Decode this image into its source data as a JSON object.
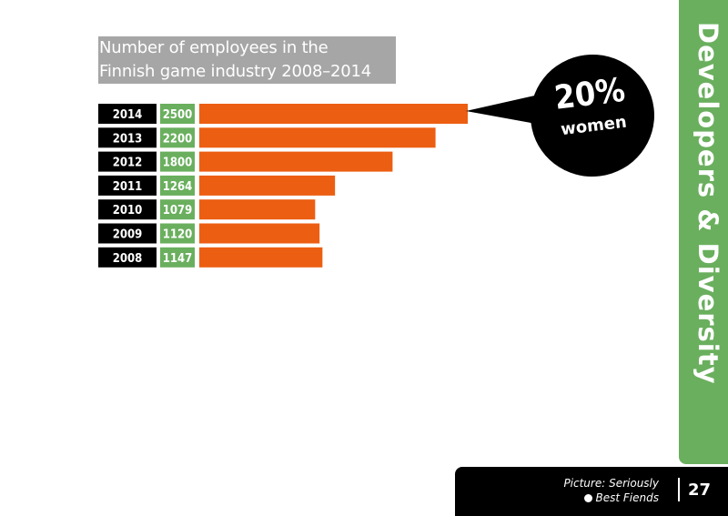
{
  "chart_data": {
    "type": "bar",
    "orientation": "horizontal",
    "title": "Number of employees in the Finnish game industry 2008–2014",
    "title_lines": [
      "Number of employees in the",
      "Finnish game industry 2008–2014"
    ],
    "categories": [
      "2014",
      "2013",
      "2012",
      "2011",
      "2010",
      "2009",
      "2008"
    ],
    "values": [
      2500,
      2200,
      1800,
      1264,
      1079,
      1120,
      1147
    ],
    "value_labels": [
      "2500",
      "2200",
      "1800",
      "1264",
      "1079",
      "1120",
      "1147"
    ],
    "xlim": [
      0,
      2500
    ],
    "grid": false
  },
  "callout": {
    "percent": "20%",
    "label": "women"
  },
  "sidebar": {
    "section_title": "Developers & Diversity"
  },
  "footer": {
    "credit_line1": "Picture: Seriously",
    "credit_line2": "Best Fiends",
    "page_number": "27"
  },
  "colors": {
    "bar": "#ec5e12",
    "value_box": "#6aaf5e",
    "year_box": "#000000",
    "title_bg": "#a6a6a6",
    "sidebar": "#6aaf5e"
  }
}
